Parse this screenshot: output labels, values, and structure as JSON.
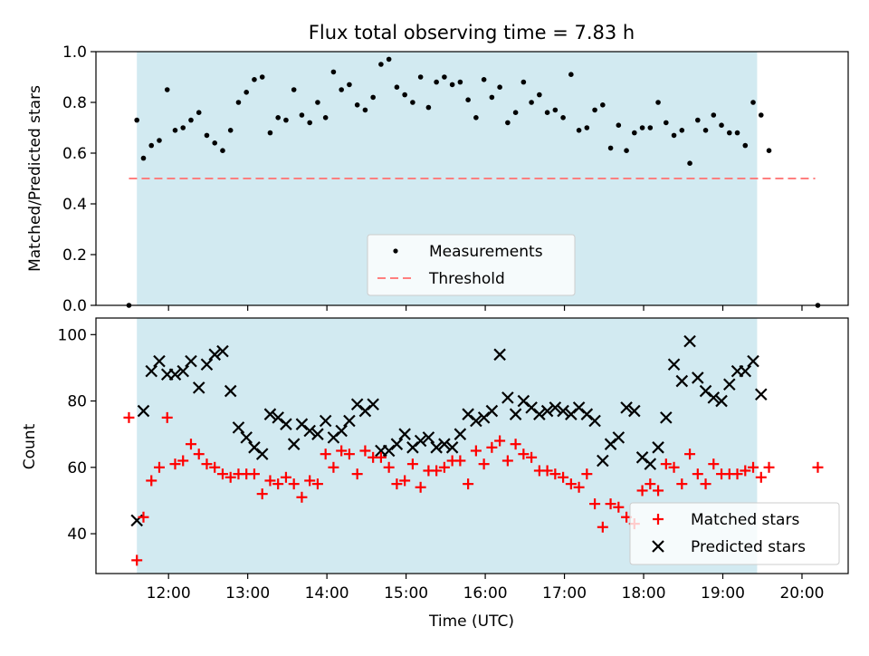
{
  "figure_title": "Flux total observing time = 7.83 h",
  "colors": {
    "shade": "#add8e6",
    "measurement": "#000000",
    "threshold": "#ff7f7f",
    "matched": "#ff0000",
    "predicted": "#000000"
  },
  "chart_data": [
    {
      "type": "scatter",
      "panel": "top",
      "title": "Flux total observing time = 7.83 h",
      "xlabel": "",
      "ylabel": "Matched/Predicted stars",
      "ylim": [
        0,
        1.0
      ],
      "yticks": [
        "0.0",
        "0.2",
        "0.4",
        "0.6",
        "0.8",
        "1.0"
      ],
      "yticks_values": [
        0,
        0.2,
        0.4,
        0.6,
        0.8,
        1.0
      ],
      "legend": {
        "position": "lower-center",
        "entries": [
          "Measurements",
          "Threshold"
        ]
      },
      "shaded_span": [
        "11:36",
        "19:26"
      ],
      "threshold": {
        "name": "Threshold",
        "value": 0.5,
        "x": [
          "11:30",
          "20:10"
        ]
      },
      "series": [
        {
          "name": "Measurements",
          "x": [
            "11:30",
            "11:36",
            "11:41",
            "11:47",
            "11:53",
            "11:59",
            "12:05",
            "12:11",
            "12:17",
            "12:23",
            "12:29",
            "12:35",
            "12:41",
            "12:47",
            "12:53",
            "12:59",
            "13:05",
            "13:11",
            "13:17",
            "13:23",
            "13:29",
            "13:35",
            "13:41",
            "13:47",
            "13:53",
            "13:59",
            "14:05",
            "14:11",
            "14:17",
            "14:23",
            "14:29",
            "14:35",
            "14:41",
            "14:47",
            "14:53",
            "14:59",
            "15:05",
            "15:11",
            "15:17",
            "15:23",
            "15:29",
            "15:35",
            "15:41",
            "15:47",
            "15:53",
            "15:59",
            "16:05",
            "16:11",
            "16:17",
            "16:23",
            "16:29",
            "16:35",
            "16:41",
            "16:47",
            "16:53",
            "16:59",
            "17:05",
            "17:11",
            "17:17",
            "17:23",
            "17:29",
            "17:35",
            "17:41",
            "17:47",
            "17:53",
            "17:59",
            "18:05",
            "18:11",
            "18:17",
            "18:23",
            "18:29",
            "18:35",
            "18:41",
            "18:47",
            "18:53",
            "18:59",
            "19:05",
            "19:11",
            "19:17",
            "19:23",
            "19:29",
            "19:35",
            "20:12"
          ],
          "y": [
            0.0,
            0.73,
            0.58,
            0.63,
            0.65,
            0.85,
            0.69,
            0.7,
            0.73,
            0.76,
            0.67,
            0.64,
            0.61,
            0.69,
            0.8,
            0.84,
            0.89,
            0.9,
            0.68,
            0.74,
            0.73,
            0.85,
            0.75,
            0.72,
            0.8,
            0.74,
            0.92,
            0.85,
            0.87,
            0.79,
            0.77,
            0.82,
            0.95,
            0.97,
            0.86,
            0.83,
            0.8,
            0.9,
            0.78,
            0.88,
            0.9,
            0.87,
            0.88,
            0.81,
            0.74,
            0.89,
            0.82,
            0.86,
            0.72,
            0.76,
            0.88,
            0.8,
            0.83,
            0.76,
            0.77,
            0.74,
            0.91,
            0.69,
            0.7,
            0.77,
            0.79,
            0.62,
            0.71,
            0.61,
            0.68,
            0.7,
            0.7,
            0.8,
            0.72,
            0.67,
            0.69,
            0.56,
            0.73,
            0.69,
            0.75,
            0.71,
            0.68,
            0.68,
            0.63,
            0.8,
            0.75,
            0.61,
            0.0
          ]
        }
      ]
    },
    {
      "type": "scatter",
      "panel": "bottom",
      "xlabel": "Time (UTC)",
      "ylabel": "Count",
      "ylim": [
        28,
        105
      ],
      "yticks": [
        "40",
        "60",
        "80",
        "100"
      ],
      "yticks_values": [
        40,
        60,
        80,
        100
      ],
      "xlim": [
        "11:05",
        "20:35"
      ],
      "xticks": [
        "12:00",
        "13:00",
        "14:00",
        "15:00",
        "16:00",
        "17:00",
        "18:00",
        "19:00",
        "20:00"
      ],
      "legend": {
        "position": "lower-right",
        "entries": [
          "Matched stars",
          "Predicted stars"
        ]
      },
      "shaded_span": [
        "11:36",
        "19:26"
      ],
      "series": [
        {
          "name": "Matched stars",
          "x": [
            "11:30",
            "11:36",
            "11:41",
            "11:47",
            "11:53",
            "11:59",
            "12:05",
            "12:11",
            "12:17",
            "12:23",
            "12:29",
            "12:35",
            "12:41",
            "12:47",
            "12:53",
            "12:59",
            "13:05",
            "13:11",
            "13:17",
            "13:23",
            "13:29",
            "13:35",
            "13:41",
            "13:47",
            "13:53",
            "13:59",
            "14:05",
            "14:11",
            "14:17",
            "14:23",
            "14:29",
            "14:35",
            "14:41",
            "14:47",
            "14:53",
            "14:59",
            "15:05",
            "15:11",
            "15:17",
            "15:23",
            "15:29",
            "15:35",
            "15:41",
            "15:47",
            "15:53",
            "15:59",
            "16:05",
            "16:11",
            "16:17",
            "16:23",
            "16:29",
            "16:35",
            "16:41",
            "16:47",
            "16:53",
            "16:59",
            "17:05",
            "17:11",
            "17:17",
            "17:23",
            "17:29",
            "17:35",
            "17:41",
            "17:47",
            "17:53",
            "17:59",
            "18:05",
            "18:11",
            "18:17",
            "18:23",
            "18:29",
            "18:35",
            "18:41",
            "18:47",
            "18:53",
            "18:59",
            "19:05",
            "19:11",
            "19:17",
            "19:23",
            "19:29",
            "19:35",
            "20:12"
          ],
          "y": [
            75,
            32,
            45,
            56,
            60,
            75,
            61,
            62,
            67,
            64,
            61,
            60,
            58,
            57,
            58,
            58,
            58,
            52,
            56,
            55,
            57,
            55,
            51,
            56,
            55,
            64,
            60,
            65,
            64,
            58,
            65,
            63,
            63,
            60,
            55,
            56,
            61,
            54,
            59,
            59,
            60,
            62,
            62,
            55,
            65,
            61,
            66,
            68,
            62,
            67,
            64,
            63,
            59,
            59,
            58,
            57,
            55,
            54,
            58,
            49,
            42,
            49,
            48,
            45,
            43,
            53,
            55,
            53,
            61,
            60,
            55,
            64,
            58,
            55,
            61,
            58,
            58,
            58,
            59,
            60,
            57,
            60,
            60
          ]
        },
        {
          "name": "Predicted stars",
          "x": [
            "11:36",
            "11:41",
            "11:47",
            "11:53",
            "11:59",
            "12:05",
            "12:11",
            "12:17",
            "12:23",
            "12:29",
            "12:35",
            "12:41",
            "12:47",
            "12:53",
            "12:59",
            "13:05",
            "13:11",
            "13:17",
            "13:23",
            "13:29",
            "13:35",
            "13:41",
            "13:47",
            "13:53",
            "13:59",
            "14:05",
            "14:11",
            "14:17",
            "14:23",
            "14:29",
            "14:35",
            "14:41",
            "14:47",
            "14:53",
            "14:59",
            "15:05",
            "15:11",
            "15:17",
            "15:23",
            "15:29",
            "15:35",
            "15:41",
            "15:47",
            "15:53",
            "15:59",
            "16:05",
            "16:11",
            "16:17",
            "16:23",
            "16:29",
            "16:35",
            "16:41",
            "16:47",
            "16:53",
            "16:59",
            "17:05",
            "17:11",
            "17:17",
            "17:23",
            "17:29",
            "17:35",
            "17:41",
            "17:47",
            "17:53",
            "17:59",
            "18:05",
            "18:11",
            "18:17",
            "18:23",
            "18:29",
            "18:35",
            "18:41",
            "18:47",
            "18:53",
            "18:59",
            "19:05",
            "19:11",
            "19:17",
            "19:23",
            "19:29"
          ],
          "y": [
            44,
            77,
            89,
            92,
            88,
            88,
            89,
            92,
            84,
            91,
            94,
            95,
            83,
            72,
            69,
            66,
            64,
            76,
            75,
            73,
            67,
            73,
            71,
            70,
            74,
            69,
            71,
            74,
            79,
            77,
            79,
            65,
            65,
            67,
            70,
            66,
            68,
            69,
            66,
            67,
            66,
            70,
            76,
            74,
            75,
            77,
            94,
            81,
            76,
            80,
            78,
            76,
            77,
            78,
            77,
            76,
            78,
            76,
            74,
            62,
            67,
            69,
            78,
            77,
            63,
            61,
            66,
            75,
            91,
            86,
            98,
            87,
            83,
            81,
            80,
            85,
            89,
            89,
            92,
            82
          ]
        }
      ]
    }
  ]
}
